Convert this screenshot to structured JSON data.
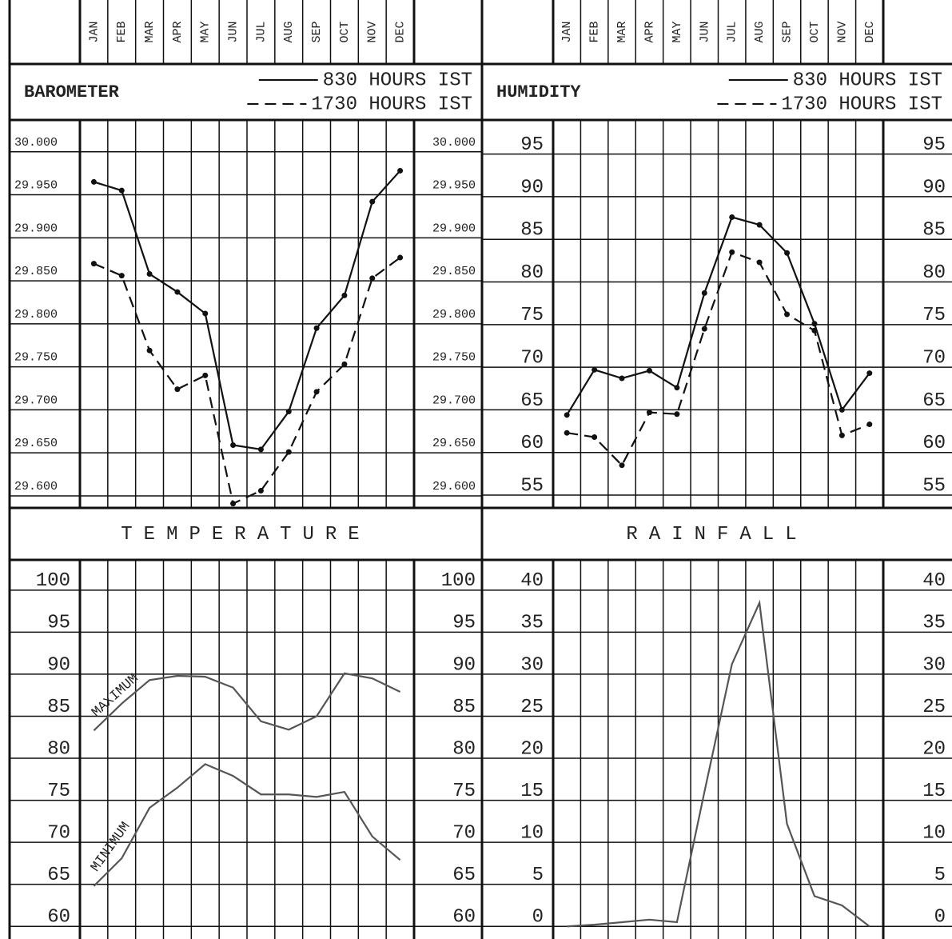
{
  "chart_data": [
    {
      "type": "line",
      "title": "BAROMETER",
      "categories": [
        "JAN",
        "FEB",
        "MAR",
        "APR",
        "MAY",
        "JUN",
        "JUL",
        "AUG",
        "SEP",
        "OCT",
        "NOV",
        "DEC"
      ],
      "series": [
        {
          "name": "830 HOURS IST",
          "color": "#111111",
          "line_style": "solid",
          "values": [
            29.965,
            29.955,
            29.858,
            29.837,
            29.812,
            29.659,
            29.654,
            29.698,
            29.795,
            29.833,
            29.942,
            29.978
          ]
        },
        {
          "name": "1730 HOURS IST",
          "color": "#111111",
          "line_style": "dashed",
          "values": [
            29.87,
            29.856,
            29.769,
            29.724,
            29.74,
            29.591,
            29.606,
            29.651,
            29.721,
            29.753,
            29.853,
            29.877
          ]
        }
      ],
      "ylim": [
        29.586,
        30.037
      ],
      "yticks": [
        {
          "value": 29.6,
          "label": "29.600"
        },
        {
          "value": 29.65,
          "label": "29.650"
        },
        {
          "value": 29.7,
          "label": "29.700"
        },
        {
          "value": 29.75,
          "label": "29.750"
        },
        {
          "value": 29.8,
          "label": "29.800"
        },
        {
          "value": 29.85,
          "label": "29.850"
        },
        {
          "value": 29.9,
          "label": "29.900"
        },
        {
          "value": 29.95,
          "label": "29.950"
        },
        {
          "value": 30,
          "label": "30.000"
        }
      ],
      "grid": true,
      "markers": true,
      "legend": "top-right"
    },
    {
      "type": "line",
      "title": "HUMIDITY",
      "categories": [
        "JAN",
        "FEB",
        "MAR",
        "APR",
        "MAY",
        "JUN",
        "JUL",
        "AUG",
        "SEP",
        "OCT",
        "NOV",
        "DEC"
      ],
      "series": [
        {
          "name": "830 HOURS IST",
          "color": "#111111",
          "line_style": "solid",
          "values": [
            64.4,
            69.7,
            68.7,
            69.6,
            67.6,
            78.7,
            87.6,
            86.7,
            83.4,
            75.1,
            65.0,
            69.3
          ]
        },
        {
          "name": "1730 HOURS IST",
          "color": "#111111",
          "line_style": "dashed",
          "values": [
            62.3,
            61.8,
            58.5,
            64.7,
            64.5,
            74.5,
            83.5,
            82.3,
            76.2,
            74.3,
            62.0,
            63.3
          ]
        }
      ],
      "ylim": [
        53.5,
        99
      ],
      "yticks": [
        55,
        60,
        65,
        70,
        75,
        80,
        85,
        90,
        95
      ],
      "grid": true,
      "markers": true,
      "legend": "top-right"
    },
    {
      "type": "line",
      "title": "TEMPERATURE",
      "series": [
        {
          "name": "MAXIMUM",
          "color": "#555555",
          "line_style": "solid",
          "values": [
            83.3,
            86.5,
            89.3,
            89.8,
            89.7,
            88.4,
            84.4,
            83.4,
            85.0,
            90.1,
            89.5,
            87.9
          ]
        },
        {
          "name": "MINIMUM",
          "color": "#555555",
          "line_style": "solid",
          "values": [
            64.8,
            68.1,
            74.1,
            76.5,
            79.3,
            77.9,
            75.7,
            75.7,
            75.4,
            76.0,
            70.7,
            67.9
          ]
        }
      ],
      "ylim": [
        58.5,
        103.6
      ],
      "yticks": [
        60,
        65,
        70,
        75,
        80,
        85,
        90,
        95,
        100
      ],
      "grid": true,
      "markers": false,
      "legend": "inline"
    },
    {
      "type": "line",
      "title": "RAINFALL",
      "series": [
        {
          "color": "#555555",
          "line_style": "solid",
          "values": [
            0,
            0.2,
            0.5,
            0.8,
            0.5,
            16,
            31.2,
            38.5,
            12.2,
            3.6,
            2.5,
            0
          ]
        }
      ],
      "ylim": [
        -1.5,
        43.6
      ],
      "yticks": [
        0,
        5,
        10,
        15,
        20,
        25,
        30,
        35,
        40
      ],
      "grid": true,
      "markers": false
    }
  ]
}
